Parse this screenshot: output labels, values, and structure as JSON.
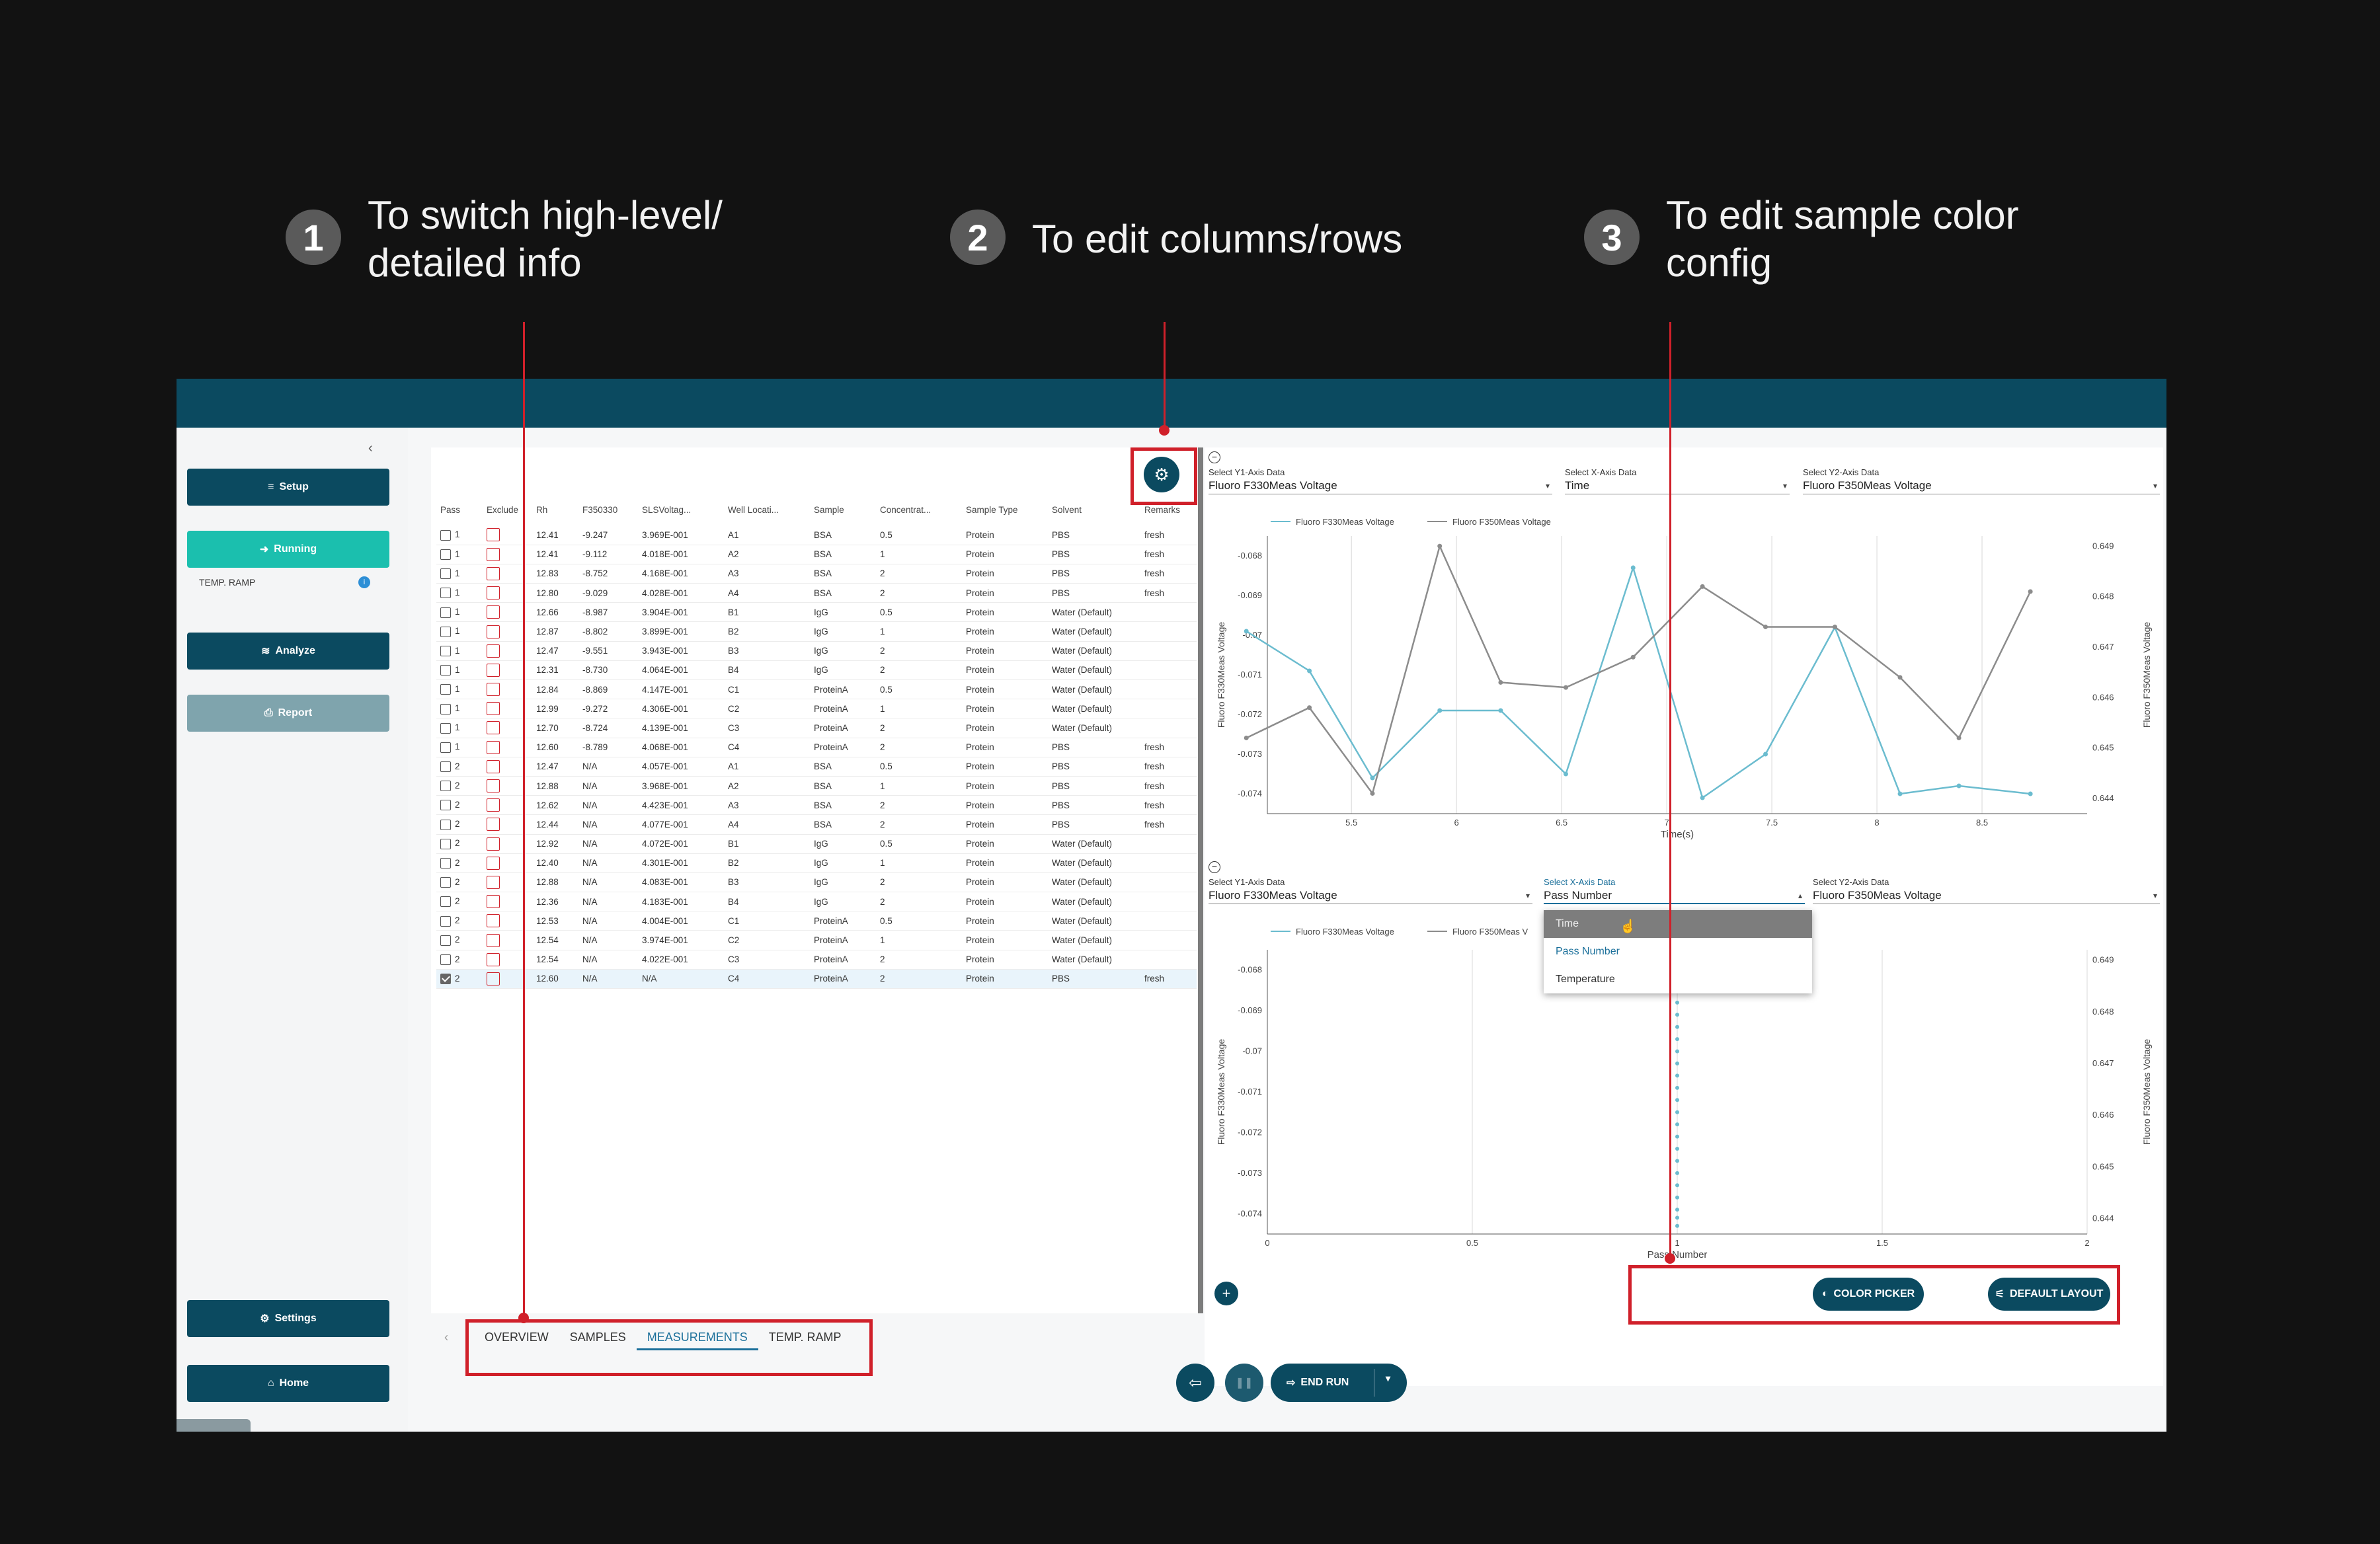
{
  "annotations": [
    {
      "num": "1",
      "text": "To switch high-level/ detailed info"
    },
    {
      "num": "2",
      "text": "To edit columns/rows"
    },
    {
      "num": "3",
      "text": "To edit sample color config"
    }
  ],
  "sidebar": {
    "setup": "Setup",
    "running": "Running",
    "sub_item": "TEMP. RAMP",
    "sub_badge": "i",
    "analyze": "Analyze",
    "report": "Report",
    "settings": "Settings",
    "home": "Home"
  },
  "table": {
    "columns": [
      "Pass",
      "Exclude",
      "Rh",
      "F350330",
      "SLSVoltag...",
      "Well Locati...",
      "Sample",
      "Concentrat...",
      "Sample Type",
      "Solvent",
      "Remarks"
    ],
    "rows": [
      [
        "1",
        "12.41",
        "-9.247",
        "3.969E-001",
        "A1",
        "BSA",
        "0.5",
        "Protein",
        "PBS",
        "fresh"
      ],
      [
        "1",
        "12.41",
        "-9.112",
        "4.018E-001",
        "A2",
        "BSA",
        "1",
        "Protein",
        "PBS",
        "fresh"
      ],
      [
        "1",
        "12.83",
        "-8.752",
        "4.168E-001",
        "A3",
        "BSA",
        "2",
        "Protein",
        "PBS",
        "fresh"
      ],
      [
        "1",
        "12.80",
        "-9.029",
        "4.028E-001",
        "A4",
        "BSA",
        "2",
        "Protein",
        "PBS",
        "fresh"
      ],
      [
        "1",
        "12.66",
        "-8.987",
        "3.904E-001",
        "B1",
        "IgG",
        "0.5",
        "Protein",
        "Water (Default)",
        ""
      ],
      [
        "1",
        "12.87",
        "-8.802",
        "3.899E-001",
        "B2",
        "IgG",
        "1",
        "Protein",
        "Water (Default)",
        ""
      ],
      [
        "1",
        "12.47",
        "-9.551",
        "3.943E-001",
        "B3",
        "IgG",
        "2",
        "Protein",
        "Water (Default)",
        ""
      ],
      [
        "1",
        "12.31",
        "-8.730",
        "4.064E-001",
        "B4",
        "IgG",
        "2",
        "Protein",
        "Water (Default)",
        ""
      ],
      [
        "1",
        "12.84",
        "-8.869",
        "4.147E-001",
        "C1",
        "ProteinA",
        "0.5",
        "Protein",
        "Water (Default)",
        ""
      ],
      [
        "1",
        "12.99",
        "-9.272",
        "4.306E-001",
        "C2",
        "ProteinA",
        "1",
        "Protein",
        "Water (Default)",
        ""
      ],
      [
        "1",
        "12.70",
        "-8.724",
        "4.139E-001",
        "C3",
        "ProteinA",
        "2",
        "Protein",
        "Water (Default)",
        ""
      ],
      [
        "1",
        "12.60",
        "-8.789",
        "4.068E-001",
        "C4",
        "ProteinA",
        "2",
        "Protein",
        "PBS",
        "fresh"
      ],
      [
        "2",
        "12.47",
        "N/A",
        "4.057E-001",
        "A1",
        "BSA",
        "0.5",
        "Protein",
        "PBS",
        "fresh"
      ],
      [
        "2",
        "12.88",
        "N/A",
        "3.968E-001",
        "A2",
        "BSA",
        "1",
        "Protein",
        "PBS",
        "fresh"
      ],
      [
        "2",
        "12.62",
        "N/A",
        "4.423E-001",
        "A3",
        "BSA",
        "2",
        "Protein",
        "PBS",
        "fresh"
      ],
      [
        "2",
        "12.44",
        "N/A",
        "4.077E-001",
        "A4",
        "BSA",
        "2",
        "Protein",
        "PBS",
        "fresh"
      ],
      [
        "2",
        "12.92",
        "N/A",
        "4.072E-001",
        "B1",
        "IgG",
        "0.5",
        "Protein",
        "Water (Default)",
        ""
      ],
      [
        "2",
        "12.40",
        "N/A",
        "4.301E-001",
        "B2",
        "IgG",
        "1",
        "Protein",
        "Water (Default)",
        ""
      ],
      [
        "2",
        "12.88",
        "N/A",
        "4.083E-001",
        "B3",
        "IgG",
        "2",
        "Protein",
        "Water (Default)",
        ""
      ],
      [
        "2",
        "12.36",
        "N/A",
        "4.183E-001",
        "B4",
        "IgG",
        "2",
        "Protein",
        "Water (Default)",
        ""
      ],
      [
        "2",
        "12.53",
        "N/A",
        "4.004E-001",
        "C1",
        "ProteinA",
        "0.5",
        "Protein",
        "Water (Default)",
        ""
      ],
      [
        "2",
        "12.54",
        "N/A",
        "3.974E-001",
        "C2",
        "ProteinA",
        "1",
        "Protein",
        "Water (Default)",
        ""
      ],
      [
        "2",
        "12.54",
        "N/A",
        "4.022E-001",
        "C3",
        "ProteinA",
        "2",
        "Protein",
        "Water (Default)",
        ""
      ],
      [
        "2",
        "12.60",
        "N/A",
        "N/A",
        "C4",
        "ProteinA",
        "2",
        "Protein",
        "PBS",
        "fresh"
      ]
    ],
    "checked_row_index": 23
  },
  "tabs": [
    "OVERVIEW",
    "SAMPLES",
    "MEASUREMENTS",
    "TEMP. RAMP"
  ],
  "active_tab": "MEASUREMENTS",
  "chart1": {
    "y1_label": "Select Y1-Axis Data",
    "y1_value": "Fluoro F330Meas Voltage",
    "x_label": "Select X-Axis Data",
    "x_value": "Time",
    "y2_label": "Select Y2-Axis Data",
    "y2_value": "Fluoro F350Meas Voltage"
  },
  "chart2": {
    "y1_label": "Select Y1-Axis Data",
    "y1_value": "Fluoro F330Meas Voltage",
    "x_label": "Select X-Axis Data",
    "x_value": "Pass Number",
    "y2_label": "Select Y2-Axis Data",
    "y2_value": "Fluoro F350Meas Voltage",
    "legend_second": "Fluoro F350Meas V",
    "dropdown_options": [
      "Time",
      "Pass Number",
      "Temperature"
    ]
  },
  "chart_data": [
    {
      "type": "line",
      "xlabel": "Time(s)",
      "ylabel": "Fluoro F330Meas Voltage",
      "y2label": "Fluoro F350Meas Voltage",
      "xticks": [
        "5.5",
        "6",
        "6.5",
        "7",
        "7.5",
        "8",
        "8.5"
      ],
      "yticks": [
        "-0.068",
        "-0.069",
        "-0.07",
        "-0.071",
        "-0.072",
        "-0.073",
        "-0.074"
      ],
      "y2ticks": [
        "0.649",
        "0.648",
        "0.647",
        "0.646",
        "0.645",
        "0.644"
      ],
      "xlim": [
        5.1,
        9.0
      ],
      "ylim": [
        -0.0745,
        -0.0675
      ],
      "y2lim": [
        0.6437,
        0.6492
      ],
      "series": [
        {
          "name": "Fluoro F330Meas Voltage",
          "axis": "y1",
          "color": "#6bbccf",
          "x": [
            5.0,
            5.3,
            5.6,
            5.92,
            6.21,
            6.52,
            6.84,
            7.17,
            7.47,
            7.8,
            8.11,
            8.39,
            8.73
          ],
          "y": [
            -0.0699,
            -0.0709,
            -0.0736,
            -0.0719,
            -0.0719,
            -0.0735,
            -0.0683,
            -0.0741,
            -0.073,
            -0.0698,
            -0.074,
            -0.0738,
            -0.074
          ]
        },
        {
          "name": "Fluoro F350Meas Voltage",
          "axis": "y2",
          "color": "#8c8c8c",
          "x": [
            5.0,
            5.3,
            5.6,
            5.92,
            6.21,
            6.52,
            6.84,
            7.17,
            7.47,
            7.8,
            8.11,
            8.39,
            8.73
          ],
          "y": [
            0.6452,
            0.6458,
            0.6441,
            0.649,
            0.6463,
            0.6462,
            0.6468,
            0.6482,
            0.6474,
            0.6474,
            0.6464,
            0.6452,
            0.6481
          ]
        }
      ]
    },
    {
      "type": "scatter",
      "xlabel": "Pass Number",
      "ylabel": "Fluoro F330Meas Voltage",
      "y2label": "Fluoro F350Meas Voltage",
      "xticks": [
        "0",
        "0.5",
        "1",
        "1.5",
        "2"
      ],
      "yticks": [
        "-0.068",
        "-0.069",
        "-0.07",
        "-0.071",
        "-0.072",
        "-0.073",
        "-0.074"
      ],
      "y2ticks": [
        "0.649",
        "0.648",
        "0.647",
        "0.646",
        "0.645",
        "0.644"
      ],
      "xlim": [
        0,
        2
      ],
      "ylim": [
        -0.0745,
        -0.0675
      ],
      "series": [
        {
          "name": "Fluoro F330Meas Voltage",
          "color": "#6bbccf",
          "x": [
            1,
            1,
            1,
            1,
            1,
            1,
            1,
            1,
            1,
            1,
            1,
            1,
            1,
            1,
            1,
            1,
            1,
            1,
            1,
            1
          ],
          "y": [
            -0.0688,
            -0.0691,
            -0.0694,
            -0.0697,
            -0.07,
            -0.0703,
            -0.0706,
            -0.0709,
            -0.0712,
            -0.0715,
            -0.0718,
            -0.0721,
            -0.0724,
            -0.0727,
            -0.073,
            -0.0733,
            -0.0736,
            -0.0739,
            -0.0741,
            -0.0743
          ]
        }
      ]
    }
  ],
  "bottom_buttons": {
    "color_picker": "COLOR PICKER",
    "default_layout": "DEFAULT LAYOUT",
    "end_run": "END RUN"
  }
}
